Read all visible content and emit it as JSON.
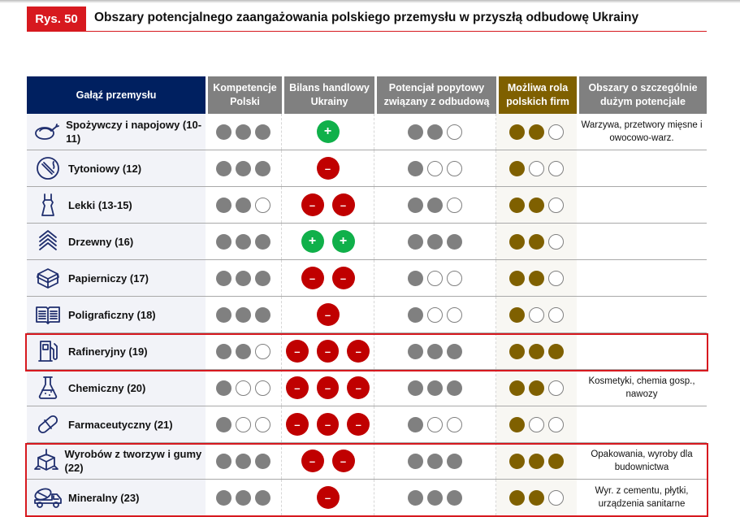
{
  "figure": {
    "badge": "Rys. 50",
    "title": "Obszary potencjalnego zaangażowania polskiego przemysłu w przyszłą odbudowę Ukrainy"
  },
  "colors": {
    "navy": "#002060",
    "grey": "#808080",
    "gold": "#7f6000",
    "red": "#c00000",
    "green": "#10b04a",
    "accent": "#d7191f"
  },
  "headers": [
    "Gałąź przemysłu",
    "Kompetencje Polski",
    "Bilans handlowy Ukrainy",
    "Potencjał popytowy związany z odbudową",
    "Możliwa rola polskich firm",
    "Obszary o szczególnie dużym potencjale"
  ],
  "rows": [
    {
      "label": "Spożywczy i napojowy (10-11)",
      "icon": "chicken-icon",
      "kompetencje": 3,
      "bilans": 1,
      "potencjal": 2,
      "rola": 2,
      "obszary": "Warzywa, przetwory mięsne i owocowo-warz."
    },
    {
      "label": "Tytoniowy (12)",
      "icon": "cigarette-icon",
      "kompetencje": 3,
      "bilans": -1,
      "potencjal": 1,
      "rola": 1,
      "obszary": ""
    },
    {
      "label": "Lekki (13-15)",
      "icon": "dress-icon",
      "kompetencje": 2,
      "bilans": -2,
      "potencjal": 2,
      "rola": 2,
      "obszary": ""
    },
    {
      "label": "Drzewny (16)",
      "icon": "wood-layers-icon",
      "kompetencje": 3,
      "bilans": 2,
      "potencjal": 3,
      "rola": 2,
      "obszary": ""
    },
    {
      "label": "Papierniczy (17)",
      "icon": "box-icon",
      "kompetencje": 3,
      "bilans": -2,
      "potencjal": 1,
      "rola": 2,
      "obszary": ""
    },
    {
      "label": "Poligraficzny (18)",
      "icon": "book-icon",
      "kompetencje": 3,
      "bilans": -1,
      "potencjal": 1,
      "rola": 1,
      "obszary": ""
    },
    {
      "label": "Rafineryjny (19)",
      "icon": "fuel-pump-icon",
      "kompetencje": 2,
      "bilans": -3,
      "potencjal": 3,
      "rola": 3,
      "obszary": "",
      "highlight": true
    },
    {
      "label": "Chemiczny (20)",
      "icon": "flask-icon",
      "kompetencje": 1,
      "bilans": -3,
      "potencjal": 3,
      "rola": 2,
      "obszary": "Kosmetyki, chemia gosp., nawozy"
    },
    {
      "label": "Farmaceutyczny (21)",
      "icon": "pill-icon",
      "kompetencje": 1,
      "bilans": -3,
      "potencjal": 1,
      "rola": 1,
      "obszary": ""
    },
    {
      "label": "Wyrobów z tworzyw i gumy (22)",
      "icon": "cube-icon",
      "kompetencje": 3,
      "bilans": -2,
      "potencjal": 3,
      "rola": 3,
      "obszary": "Opakowania, wyroby dla budownictwa",
      "highlight": true
    },
    {
      "label": "Mineralny (23)",
      "icon": "cement-truck-icon",
      "kompetencje": 3,
      "bilans": -1,
      "potencjal": 3,
      "rola": 2,
      "obszary": "Wyr. z cementu, płytki, urządzenia sanitarne",
      "highlight": true
    }
  ]
}
